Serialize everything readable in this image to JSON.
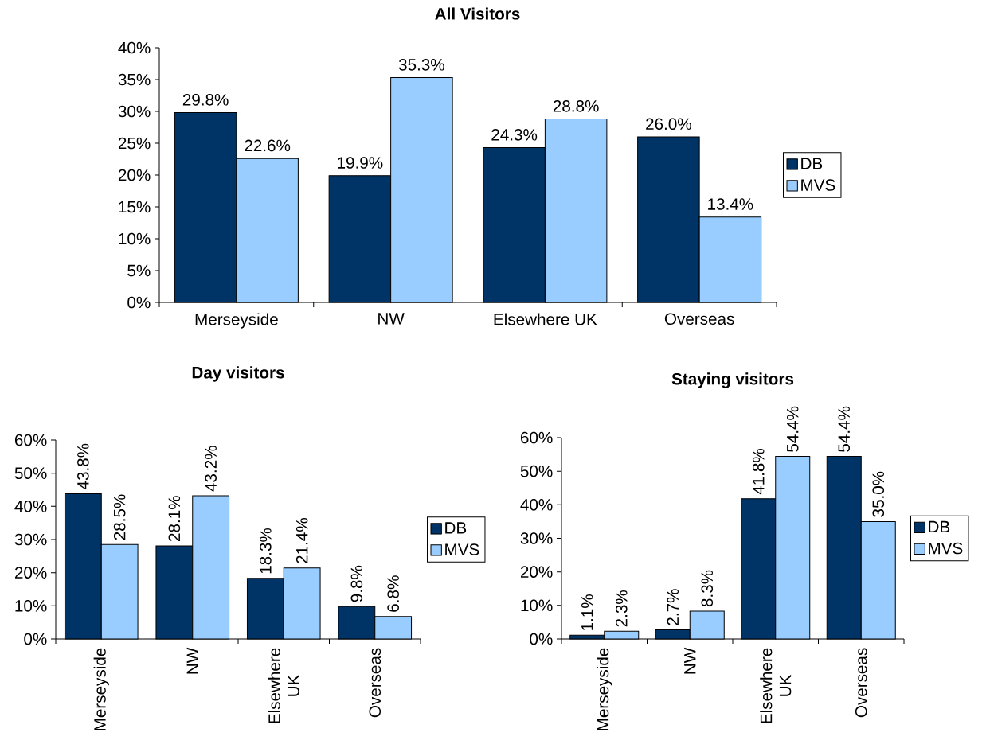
{
  "chart_data": [
    {
      "type": "bar",
      "title": "All Visitors",
      "categories": [
        "Merseyside",
        "NW",
        "Elsewhere UK",
        "Overseas"
      ],
      "series": [
        {
          "name": "DB",
          "color": "#003366",
          "values": [
            29.8,
            19.9,
            24.3,
            26.0
          ],
          "value_labels": [
            "29.8%",
            "19.9%",
            "24.3%",
            "26.0%"
          ]
        },
        {
          "name": "MVS",
          "color": "#99ccff",
          "values": [
            22.6,
            35.3,
            28.8,
            13.4
          ],
          "value_labels": [
            "22.6%",
            "35.3%",
            "28.8%",
            "13.4%"
          ]
        }
      ],
      "ylim": [
        0,
        40
      ],
      "yticks": [
        {
          "value": 0,
          "label": "0%"
        },
        {
          "value": 5,
          "label": "5%"
        },
        {
          "value": 10,
          "label": "10%"
        },
        {
          "value": 15,
          "label": "15%"
        },
        {
          "value": 20,
          "label": "20%"
        },
        {
          "value": 25,
          "label": "25%"
        },
        {
          "value": 30,
          "label": "30%"
        },
        {
          "value": 35,
          "label": "35%"
        },
        {
          "value": 40,
          "label": "40%"
        }
      ],
      "legend": "right"
    },
    {
      "type": "bar",
      "title": "Day visitors",
      "categories": [
        "Merseyside",
        "NW",
        "Elsewhere UK",
        "Overseas"
      ],
      "series": [
        {
          "name": "DB",
          "color": "#003366",
          "values": [
            43.8,
            28.1,
            18.3,
            9.8
          ],
          "value_labels": [
            "43.8%",
            "28.1%",
            "18.3%",
            "9.8%"
          ]
        },
        {
          "name": "MVS",
          "color": "#99ccff",
          "values": [
            28.5,
            43.2,
            21.4,
            6.8
          ],
          "value_labels": [
            "28.5%",
            "43.2%",
            "21.4%",
            "6.8%"
          ]
        }
      ],
      "ylim": [
        0,
        60
      ],
      "yticks": [
        {
          "value": 0,
          "label": "0%"
        },
        {
          "value": 10,
          "label": "10%"
        },
        {
          "value": 20,
          "label": "20%"
        },
        {
          "value": 30,
          "label": "30%"
        },
        {
          "value": 40,
          "label": "40%"
        },
        {
          "value": 50,
          "label": "50%"
        },
        {
          "value": 60,
          "label": "60%"
        }
      ],
      "legend": "right"
    },
    {
      "type": "bar",
      "title": "Staying visitors",
      "categories": [
        "Merseyside",
        "NW",
        "Elsewhere UK",
        "Overseas"
      ],
      "series": [
        {
          "name": "DB",
          "color": "#003366",
          "values": [
            1.1,
            2.7,
            41.8,
            54.4
          ],
          "value_labels": [
            "1.1%",
            "2.7%",
            "41.8%",
            "54.4%"
          ]
        },
        {
          "name": "MVS",
          "color": "#99ccff",
          "values": [
            2.3,
            8.3,
            54.4,
            35.0
          ],
          "value_labels": [
            "2.3%",
            "8.3%",
            "54.4%",
            "35.0%"
          ]
        }
      ],
      "ylim": [
        0,
        60
      ],
      "yticks": [
        {
          "value": 0,
          "label": "0%"
        },
        {
          "value": 10,
          "label": "10%"
        },
        {
          "value": 20,
          "label": "20%"
        },
        {
          "value": 30,
          "label": "30%"
        },
        {
          "value": 40,
          "label": "40%"
        },
        {
          "value": 50,
          "label": "50%"
        },
        {
          "value": 60,
          "label": "60%"
        }
      ],
      "legend": "right"
    }
  ]
}
